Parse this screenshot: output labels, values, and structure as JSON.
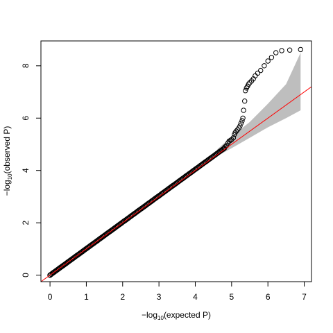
{
  "chart_data": {
    "type": "scatter",
    "title": "",
    "xlabel": {
      "prefix": "−log",
      "sub": "10",
      "suffix": "(expected P)"
    },
    "ylabel": {
      "prefix": "−log",
      "sub": "10",
      "suffix": "(observed P)"
    },
    "xlim": [
      -0.25,
      7.2
    ],
    "ylim": [
      -0.25,
      8.95
    ],
    "xticks": [
      0,
      1,
      2,
      3,
      4,
      5,
      6,
      7
    ],
    "yticks": [
      0,
      2,
      4,
      6,
      8
    ],
    "grid": false,
    "legend": "none",
    "reference_line": {
      "slope": 1,
      "intercept": 0,
      "color": "#ff0000"
    },
    "confidence_band": {
      "color": "#bebebe",
      "upper": [
        [
          4.6,
          4.8
        ],
        [
          5.0,
          5.3
        ],
        [
          5.5,
          5.85
        ],
        [
          6.0,
          6.55
        ],
        [
          6.5,
          7.3
        ],
        [
          6.9,
          8.5
        ]
      ],
      "lower": [
        [
          4.6,
          4.55
        ],
        [
          5.0,
          4.85
        ],
        [
          5.5,
          5.25
        ],
        [
          6.0,
          5.65
        ],
        [
          6.5,
          6.0
        ],
        [
          6.9,
          6.3
        ]
      ]
    },
    "series": [
      {
        "marker": "open-circle",
        "color": "#000000",
        "dense_segment": {
          "x_start": 0.0,
          "x_end": 4.8,
          "y_start": 0.0,
          "y_end": 4.85,
          "count": 140
        },
        "points": [
          {
            "x": 4.82,
            "y": 4.9
          },
          {
            "x": 4.86,
            "y": 4.95
          },
          {
            "x": 4.9,
            "y": 5.05
          },
          {
            "x": 4.93,
            "y": 5.12
          },
          {
            "x": 4.97,
            "y": 5.15
          },
          {
            "x": 5.0,
            "y": 5.18
          },
          {
            "x": 5.05,
            "y": 5.25
          },
          {
            "x": 5.08,
            "y": 5.38
          },
          {
            "x": 5.1,
            "y": 5.45
          },
          {
            "x": 5.13,
            "y": 5.5
          },
          {
            "x": 5.16,
            "y": 5.55
          },
          {
            "x": 5.2,
            "y": 5.62
          },
          {
            "x": 5.23,
            "y": 5.7
          },
          {
            "x": 5.26,
            "y": 5.8
          },
          {
            "x": 5.29,
            "y": 5.9
          },
          {
            "x": 5.31,
            "y": 6.0
          },
          {
            "x": 5.33,
            "y": 6.3
          },
          {
            "x": 5.36,
            "y": 6.65
          },
          {
            "x": 5.38,
            "y": 7.05
          },
          {
            "x": 5.41,
            "y": 7.15
          },
          {
            "x": 5.44,
            "y": 7.22
          },
          {
            "x": 5.47,
            "y": 7.3
          },
          {
            "x": 5.5,
            "y": 7.35
          },
          {
            "x": 5.55,
            "y": 7.42
          },
          {
            "x": 5.6,
            "y": 7.5
          },
          {
            "x": 5.65,
            "y": 7.62
          },
          {
            "x": 5.72,
            "y": 7.72
          },
          {
            "x": 5.8,
            "y": 7.82
          },
          {
            "x": 5.9,
            "y": 8.0
          },
          {
            "x": 6.0,
            "y": 8.18
          },
          {
            "x": 6.1,
            "y": 8.32
          },
          {
            "x": 6.22,
            "y": 8.5
          },
          {
            "x": 6.38,
            "y": 8.58
          },
          {
            "x": 6.6,
            "y": 8.6
          },
          {
            "x": 6.9,
            "y": 8.62
          }
        ]
      }
    ]
  }
}
